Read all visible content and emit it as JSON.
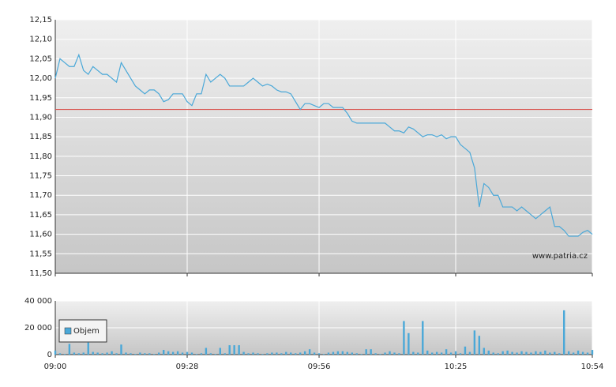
{
  "chart_data": [
    {
      "type": "line",
      "x": [
        "09:00",
        "09:01",
        "09:02",
        "09:03",
        "09:04",
        "09:05",
        "09:06",
        "09:07",
        "09:08",
        "09:09",
        "09:10",
        "09:11",
        "09:12",
        "09:13",
        "09:14",
        "09:15",
        "09:16",
        "09:17",
        "09:18",
        "09:19",
        "09:20",
        "09:21",
        "09:22",
        "09:23",
        "09:24",
        "09:25",
        "09:26",
        "09:27",
        "09:28",
        "09:29",
        "09:30",
        "09:31",
        "09:32",
        "09:33",
        "09:34",
        "09:35",
        "09:36",
        "09:37",
        "09:38",
        "09:39",
        "09:40",
        "09:41",
        "09:42",
        "09:43",
        "09:44",
        "09:45",
        "09:46",
        "09:47",
        "09:48",
        "09:49",
        "09:50",
        "09:51",
        "09:52",
        "09:53",
        "09:54",
        "09:55",
        "09:56",
        "09:57",
        "09:58",
        "09:59",
        "10:00",
        "10:01",
        "10:02",
        "10:03",
        "10:04",
        "10:05",
        "10:06",
        "10:07",
        "10:08",
        "10:09",
        "10:10",
        "10:11",
        "10:12",
        "10:13",
        "10:14",
        "10:15",
        "10:16",
        "10:17",
        "10:18",
        "10:19",
        "10:20",
        "10:21",
        "10:22",
        "10:23",
        "10:24",
        "10:25",
        "10:26",
        "10:27",
        "10:28",
        "10:29",
        "10:30",
        "10:31",
        "10:32",
        "10:33",
        "10:34",
        "10:35",
        "10:36",
        "10:37",
        "10:38",
        "10:39",
        "10:40",
        "10:41",
        "10:42",
        "10:43",
        "10:44",
        "10:45",
        "10:46",
        "10:47",
        "10:48",
        "10:49",
        "10:50",
        "10:51",
        "10:52",
        "10:53",
        "10:54"
      ],
      "values": [
        12.0,
        12.05,
        12.04,
        12.03,
        12.03,
        12.06,
        12.02,
        12.01,
        12.03,
        12.02,
        12.01,
        12.01,
        12.0,
        11.99,
        12.04,
        12.02,
        12.0,
        11.98,
        11.97,
        11.96,
        11.97,
        11.97,
        11.96,
        11.94,
        11.945,
        11.96,
        11.96,
        11.96,
        11.94,
        11.93,
        11.96,
        11.96,
        12.01,
        11.99,
        12.0,
        12.01,
        12.0,
        11.98,
        11.98,
        11.98,
        11.98,
        11.99,
        12.0,
        11.99,
        11.98,
        11.985,
        11.98,
        11.97,
        11.965,
        11.965,
        11.96,
        11.94,
        11.92,
        11.935,
        11.935,
        11.93,
        11.925,
        11.935,
        11.935,
        11.925,
        11.925,
        11.925,
        11.91,
        11.89,
        11.885,
        11.885,
        11.885,
        11.885,
        11.885,
        11.885,
        11.885,
        11.875,
        11.865,
        11.865,
        11.86,
        11.875,
        11.87,
        11.86,
        11.85,
        11.855,
        11.855,
        11.85,
        11.855,
        11.845,
        11.85,
        11.85,
        11.83,
        11.82,
        11.81,
        11.77,
        11.67,
        11.73,
        11.72,
        11.7,
        11.7,
        11.67,
        11.67,
        11.67,
        11.66,
        11.67,
        11.66,
        11.65,
        11.64,
        11.65,
        11.66,
        11.67,
        11.62,
        11.62,
        11.61,
        11.595,
        11.595,
        11.595,
        11.605,
        11.61,
        11.6
      ],
      "color": "#4aa8d8",
      "xlim": [
        "09:00",
        "10:54"
      ],
      "ylim": [
        11.5,
        12.15
      ],
      "yticks": [
        {
          "value": 11.5,
          "label": "11,50"
        },
        {
          "value": 11.55,
          "label": "11,55"
        },
        {
          "value": 11.6,
          "label": "11,60"
        },
        {
          "value": 11.65,
          "label": "11,65"
        },
        {
          "value": 11.7,
          "label": "11,70"
        },
        {
          "value": 11.75,
          "label": "11,75"
        },
        {
          "value": 11.8,
          "label": "11,80"
        },
        {
          "value": 11.85,
          "label": "11,85"
        },
        {
          "value": 11.9,
          "label": "11,90"
        },
        {
          "value": 11.95,
          "label": "11,95"
        },
        {
          "value": 12.0,
          "label": "12,00"
        },
        {
          "value": 12.05,
          "label": "12,05"
        },
        {
          "value": 12.1,
          "label": "12,10"
        },
        {
          "value": 12.15,
          "label": "12,15"
        }
      ],
      "reference_line": {
        "value": 11.92,
        "color": "#d9534f"
      },
      "annotation": "www.patria.cz",
      "grid": true
    },
    {
      "type": "bar",
      "x": [
        "09:00",
        "09:01",
        "09:02",
        "09:03",
        "09:04",
        "09:05",
        "09:06",
        "09:07",
        "09:08",
        "09:09",
        "09:10",
        "09:11",
        "09:12",
        "09:13",
        "09:14",
        "09:15",
        "09:16",
        "09:17",
        "09:18",
        "09:19",
        "09:20",
        "09:21",
        "09:22",
        "09:23",
        "09:24",
        "09:25",
        "09:26",
        "09:27",
        "09:28",
        "09:29",
        "09:30",
        "09:31",
        "09:32",
        "09:33",
        "09:34",
        "09:35",
        "09:36",
        "09:37",
        "09:38",
        "09:39",
        "09:40",
        "09:41",
        "09:42",
        "09:43",
        "09:44",
        "09:45",
        "09:46",
        "09:47",
        "09:48",
        "09:49",
        "09:50",
        "09:51",
        "09:52",
        "09:53",
        "09:54",
        "09:55",
        "09:56",
        "09:57",
        "09:58",
        "09:59",
        "10:00",
        "10:01",
        "10:02",
        "10:03",
        "10:04",
        "10:05",
        "10:06",
        "10:07",
        "10:08",
        "10:09",
        "10:10",
        "10:11",
        "10:12",
        "10:13",
        "10:14",
        "10:15",
        "10:16",
        "10:17",
        "10:18",
        "10:19",
        "10:20",
        "10:21",
        "10:22",
        "10:23",
        "10:24",
        "10:25",
        "10:26",
        "10:27",
        "10:28",
        "10:29",
        "10:30",
        "10:31",
        "10:32",
        "10:33",
        "10:34",
        "10:35",
        "10:36",
        "10:37",
        "10:38",
        "10:39",
        "10:40",
        "10:41",
        "10:42",
        "10:43",
        "10:44",
        "10:45",
        "10:46",
        "10:47",
        "10:48",
        "10:49",
        "10:50",
        "10:51",
        "10:52",
        "10:53",
        "10:54"
      ],
      "series": [
        {
          "name": "Objem",
          "color": "#4aa8d8",
          "values": [
            3000,
            1000,
            500,
            8000,
            1500,
            1000,
            1500,
            9000,
            2000,
            1500,
            1000,
            1500,
            2500,
            1000,
            7500,
            1500,
            1000,
            500,
            1500,
            1000,
            1000,
            500,
            1500,
            3500,
            2500,
            2000,
            2500,
            1500,
            2000,
            1500,
            500,
            1000,
            5000,
            1000,
            500,
            5000,
            1000,
            7000,
            7000,
            7000,
            2000,
            1000,
            1500,
            1000,
            500,
            1000,
            1500,
            1500,
            1000,
            2000,
            1500,
            1000,
            1500,
            2500,
            4000,
            1500,
            1000,
            500,
            1500,
            2000,
            2500,
            2500,
            2000,
            1500,
            1000,
            500,
            4000,
            4000,
            1000,
            500,
            1500,
            2500,
            1500,
            1000,
            25000,
            16000,
            2000,
            1500,
            25000,
            3000,
            1500,
            2000,
            1500,
            4000,
            1500,
            2500,
            1000,
            6000,
            2000,
            18000,
            14000,
            5000,
            3000,
            1500,
            1000,
            2500,
            3000,
            2000,
            1500,
            2500,
            2000,
            1500,
            2500,
            2000,
            3000,
            1500,
            2000,
            1000,
            33000,
            2500,
            1500,
            3000,
            2000,
            1500,
            3500
          ]
        }
      ],
      "xlim": [
        "09:00",
        "10:54"
      ],
      "xticks": [
        "09:00",
        "09:28",
        "09:56",
        "10:25",
        "10:54"
      ],
      "ylim": [
        0,
        40000
      ],
      "yticks": [
        0,
        {
          "value": 20000,
          "label": "20 000"
        },
        {
          "value": 40000,
          "label": "40 000"
        }
      ],
      "legend": "upper left",
      "grid": true
    }
  ]
}
